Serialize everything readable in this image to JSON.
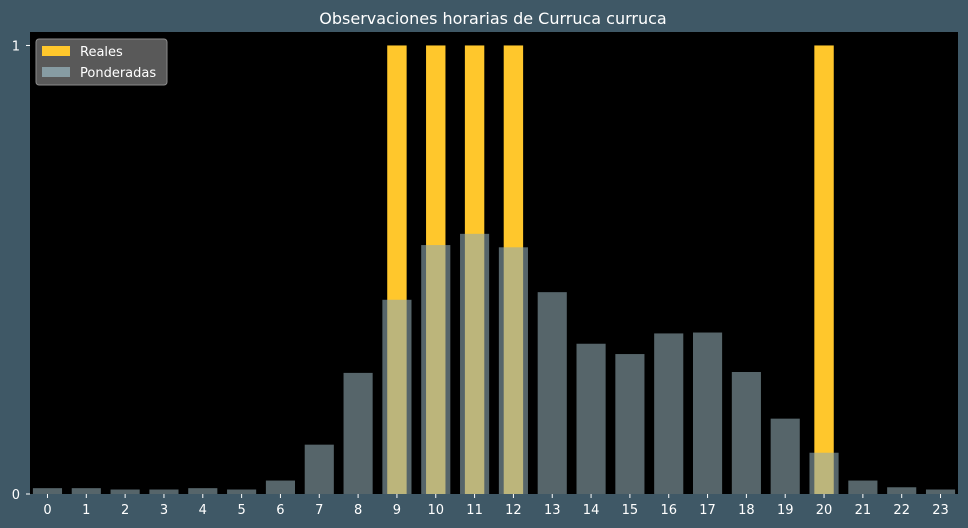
{
  "chart_data": {
    "type": "bar",
    "title": "Observaciones horarias de Curruca curruca",
    "xlabel": "",
    "ylabel": "",
    "categories": [
      "0",
      "1",
      "2",
      "3",
      "4",
      "5",
      "6",
      "7",
      "8",
      "9",
      "10",
      "11",
      "12",
      "13",
      "14",
      "15",
      "16",
      "17",
      "18",
      "19",
      "20",
      "21",
      "22",
      "23"
    ],
    "ylim": [
      0,
      1.03
    ],
    "yticks": [
      "0",
      "1"
    ],
    "legend": "top-left",
    "grid": false,
    "series": [
      {
        "name": "Reales",
        "color": "#ffc72c",
        "values": [
          0,
          0,
          0,
          0,
          0,
          0,
          0,
          0,
          0,
          1,
          1,
          1,
          1,
          0,
          0,
          0,
          0,
          0,
          0,
          0,
          1,
          0,
          0,
          0
        ]
      },
      {
        "name": "Ponderadas",
        "color": "#8fa8b0",
        "opacity": 0.6,
        "values": [
          0.013,
          0.013,
          0.01,
          0.01,
          0.013,
          0.01,
          0.03,
          0.11,
          0.27,
          0.433,
          0.555,
          0.58,
          0.55,
          0.45,
          0.335,
          0.312,
          0.358,
          0.36,
          0.272,
          0.168,
          0.092,
          0.03,
          0.015,
          0.01
        ]
      }
    ]
  }
}
